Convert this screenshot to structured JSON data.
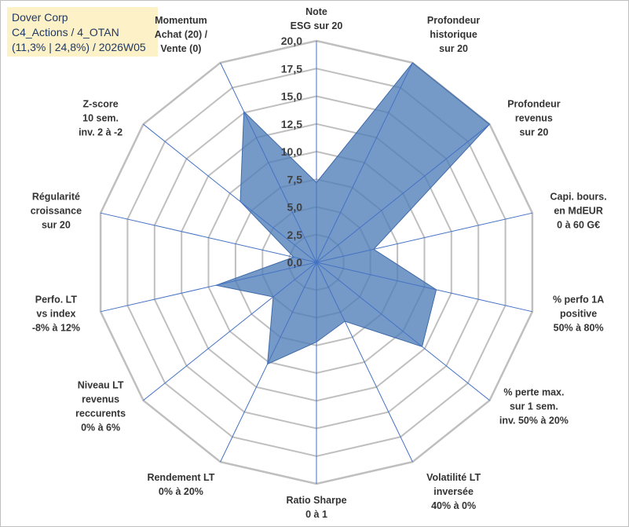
{
  "title": {
    "line1": "Dover Corp",
    "line2": "C4_Actions / 4_OTAN",
    "line3": "(11,3% | 24,8%) / 2026W05"
  },
  "chart_data": {
    "type": "radar",
    "rmax": 20,
    "tick_step": 2.5,
    "tick_labels": [
      "0,0",
      "2,5",
      "5,0",
      "7,5",
      "10,0",
      "12,5",
      "15,0",
      "17,5",
      "20,0"
    ],
    "axes": [
      {
        "label": [
          "Note",
          "ESG sur 20"
        ],
        "value": 7.2
      },
      {
        "label": [
          "Profondeur",
          "historique",
          "sur 20"
        ],
        "value": 20
      },
      {
        "label": [
          "Profondeur",
          "revenus",
          "sur 20"
        ],
        "value": 20
      },
      {
        "label": [
          "Capi. bours.",
          "en MdEUR",
          "0 à 60 G€"
        ],
        "value": 5.3
      },
      {
        "label": [
          "% perfo 1A",
          "positive",
          "50% à 80%"
        ],
        "value": 11.1
      },
      {
        "label": [
          "% perte max.",
          "sur 1 sem.",
          "inv. 50% à 20%"
        ],
        "value": 12.2
      },
      {
        "label": [
          "Volatilité LT",
          "inversée",
          "40% à 0%"
        ],
        "value": 5.9
      },
      {
        "label": [
          "Ratio Sharpe",
          "0 à 1"
        ],
        "value": 7.2
      },
      {
        "label": [
          "Rendement LT",
          "0% à 20%"
        ],
        "value": 10.2
      },
      {
        "label": [
          "Niveau LT",
          "revenus",
          "reccurents",
          "0% à 6%"
        ],
        "value": 5.0
      },
      {
        "label": [
          "Perfo. LT",
          "vs index",
          "-8% à 12%"
        ],
        "value": 9.3
      },
      {
        "label": [
          "Régularité",
          "croissance",
          "sur 20"
        ],
        "value": 2.1
      },
      {
        "label": [
          "Z-score",
          "10 sem.",
          "inv. 2 à -2"
        ],
        "value": 8.8
      },
      {
        "label": [
          "Momentum",
          "Achat (20) /",
          "Vente (0)"
        ],
        "value": 15.1
      }
    ],
    "series": [
      {
        "name": "Dover Corp",
        "color": "#4f7eb8"
      }
    ],
    "grid_color": "#bfbfbf",
    "axis_color": "#4472c4"
  }
}
